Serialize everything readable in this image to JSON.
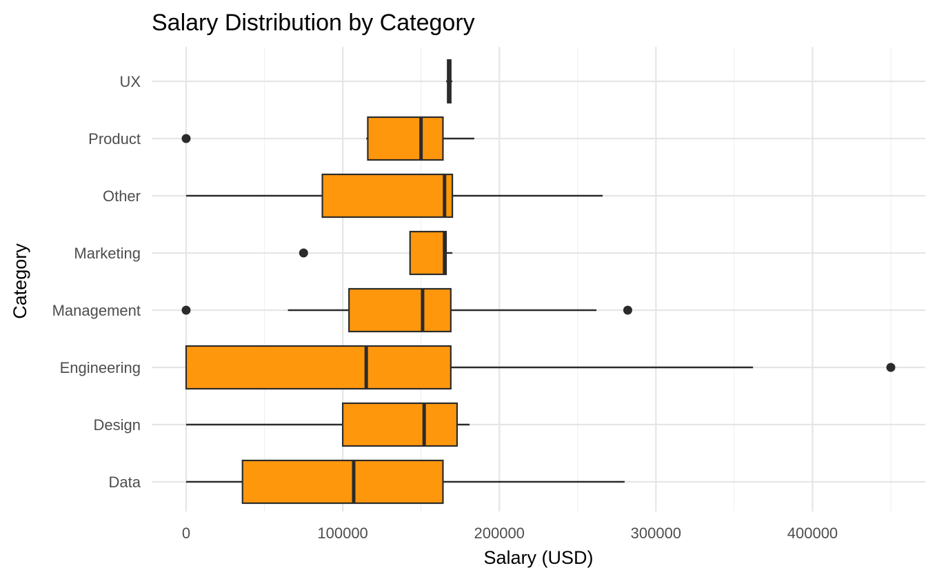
{
  "chart_data": {
    "type": "boxplot",
    "orientation": "horizontal",
    "title": "Salary Distribution by Category",
    "xlabel": "Salary (USD)",
    "ylabel": "Category",
    "xlim": [
      -22000,
      472000
    ],
    "xticks": [
      0,
      100000,
      200000,
      300000,
      400000
    ],
    "xtick_labels": [
      "0",
      "100000",
      "200000",
      "300000",
      "400000"
    ],
    "grid": true,
    "legend": "none",
    "fill_color": "#FF970D",
    "line_color": "#2b2b2b",
    "categories": [
      "Data",
      "Design",
      "Engineering",
      "Management",
      "Marketing",
      "Other",
      "Product",
      "UX"
    ],
    "boxes": [
      {
        "category": "Data",
        "whisker_low": 0,
        "q1": 36000,
        "median": 107000,
        "q3": 164000,
        "whisker_high": 280000,
        "outliers": []
      },
      {
        "category": "Design",
        "whisker_low": 0,
        "q1": 100000,
        "median": 152000,
        "q3": 173000,
        "whisker_high": 181000,
        "outliers": []
      },
      {
        "category": "Engineering",
        "whisker_low": 0,
        "q1": 0,
        "median": 115000,
        "q3": 169000,
        "whisker_high": 362000,
        "outliers": [
          450000
        ]
      },
      {
        "category": "Management",
        "whisker_low": 65000,
        "q1": 104000,
        "median": 151000,
        "q3": 169000,
        "whisker_high": 262000,
        "outliers": [
          0,
          282000
        ]
      },
      {
        "category": "Marketing",
        "whisker_low": 143000,
        "q1": 143000,
        "median": 165000,
        "q3": 166000,
        "whisker_high": 170000,
        "outliers": [
          75000
        ]
      },
      {
        "category": "Other",
        "whisker_low": 0,
        "q1": 87000,
        "median": 165000,
        "q3": 170000,
        "whisker_high": 266000,
        "outliers": []
      },
      {
        "category": "Product",
        "whisker_low": 115000,
        "q1": 116000,
        "median": 150000,
        "q3": 164000,
        "whisker_high": 184000,
        "outliers": [
          0
        ]
      },
      {
        "category": "UX",
        "whisker_low": 166000,
        "q1": 167000,
        "median": 168000,
        "q3": 169000,
        "whisker_high": 170000,
        "outliers": []
      }
    ]
  }
}
